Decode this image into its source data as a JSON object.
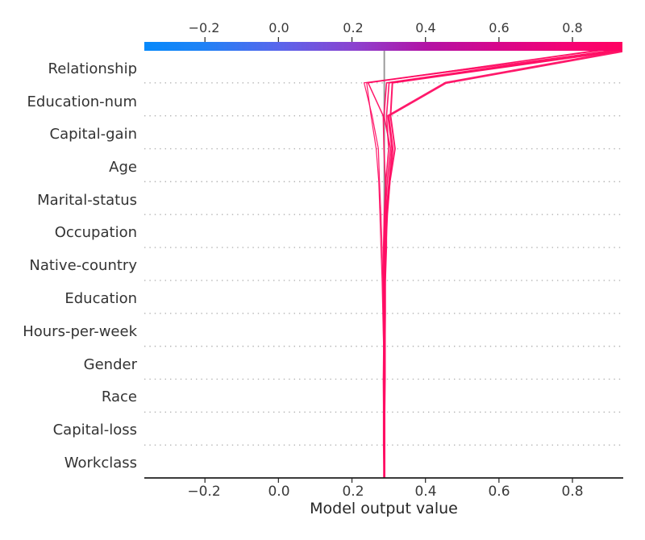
{
  "chart_data": {
    "type": "line",
    "subtype": "shap-decision-plot",
    "title": "",
    "xlabel": "Model output value",
    "ylabel": "",
    "xlim": [
      -0.365,
      0.936
    ],
    "grid": "horizontal-dotted",
    "legend_position": "none",
    "x_ticks": [
      -0.2,
      0.0,
      0.2,
      0.4,
      0.6,
      0.8
    ],
    "x_tick_labels": [
      "−0.2",
      "0.0",
      "0.2",
      "0.4",
      "0.6",
      "0.8"
    ],
    "features": [
      "Relationship",
      "Education-num",
      "Capital-gain",
      "Age",
      "Marital-status",
      "Occupation",
      "Native-country",
      "Education",
      "Hours-per-week",
      "Gender",
      "Race",
      "Capital-loss",
      "Workclass"
    ],
    "base_value": 0.288,
    "base_line_color": "#979797",
    "line_color": "#ff0d63",
    "colorbar": {
      "ticks": [
        -0.2,
        0.0,
        0.2,
        0.4,
        0.6,
        0.8
      ],
      "tick_labels": [
        "−0.2",
        "0.0",
        "0.2",
        "0.4",
        "0.6",
        "0.8"
      ],
      "gradient": [
        {
          "offset": 0,
          "color": "#0689fb"
        },
        {
          "offset": 0.12,
          "color": "#1e82f6"
        },
        {
          "offset": 0.28,
          "color": "#5966ec"
        },
        {
          "offset": 0.44,
          "color": "#8c42cf"
        },
        {
          "offset": 0.59,
          "color": "#b313a5"
        },
        {
          "offset": 0.74,
          "color": "#d7068b"
        },
        {
          "offset": 0.9,
          "color": "#f70372"
        },
        {
          "offset": 1,
          "color": "#ff0261"
        }
      ]
    },
    "lines": [
      {
        "name": "observation-1",
        "final_value": 0.954,
        "width": 2.8,
        "cumulative_values_bottom_to_top": [
          0.288,
          0.288,
          0.288,
          0.289,
          0.289,
          0.289,
          0.288,
          0.289,
          0.294,
          0.302,
          0.31,
          0.299,
          0.455,
          0.954
        ]
      },
      {
        "name": "observation-2",
        "final_value": 0.94,
        "width": 1.6,
        "cumulative_values_bottom_to_top": [
          0.288,
          0.286,
          0.286,
          0.286,
          0.287,
          0.287,
          0.286,
          0.286,
          0.288,
          0.292,
          0.3,
          0.294,
          0.301,
          0.94
        ]
      },
      {
        "name": "observation-3",
        "final_value": 0.914,
        "width": 1.6,
        "cumulative_values_bottom_to_top": [
          0.288,
          0.288,
          0.288,
          0.288,
          0.288,
          0.288,
          0.288,
          0.288,
          0.29,
          0.296,
          0.305,
          0.287,
          0.294,
          0.914
        ]
      },
      {
        "name": "observation-4",
        "final_value": 0.888,
        "width": 1.2,
        "cumulative_values_bottom_to_top": [
          0.288,
          0.286,
          0.286,
          0.285,
          0.286,
          0.285,
          0.284,
          0.282,
          0.279,
          0.275,
          0.272,
          0.255,
          0.233,
          0.888
        ]
      },
      {
        "name": "observation-5",
        "final_value": 0.922,
        "width": 1.2,
        "cumulative_values_bottom_to_top": [
          0.288,
          0.287,
          0.286,
          0.286,
          0.286,
          0.284,
          0.282,
          0.279,
          0.276,
          0.273,
          0.266,
          0.252,
          0.24,
          0.922
        ]
      },
      {
        "name": "observation-6",
        "final_value": 0.875,
        "width": 1.5,
        "cumulative_values_bottom_to_top": [
          0.288,
          0.289,
          0.289,
          0.289,
          0.29,
          0.291,
          0.291,
          0.294,
          0.294,
          0.291,
          0.287,
          0.285,
          0.244,
          0.875
        ]
      },
      {
        "name": "observation-7",
        "final_value": 0.945,
        "width": 2.0,
        "cumulative_values_bottom_to_top": [
          0.288,
          0.288,
          0.288,
          0.288,
          0.288,
          0.289,
          0.29,
          0.292,
          0.296,
          0.303,
          0.317,
          0.305,
          0.31,
          0.945
        ]
      }
    ]
  }
}
